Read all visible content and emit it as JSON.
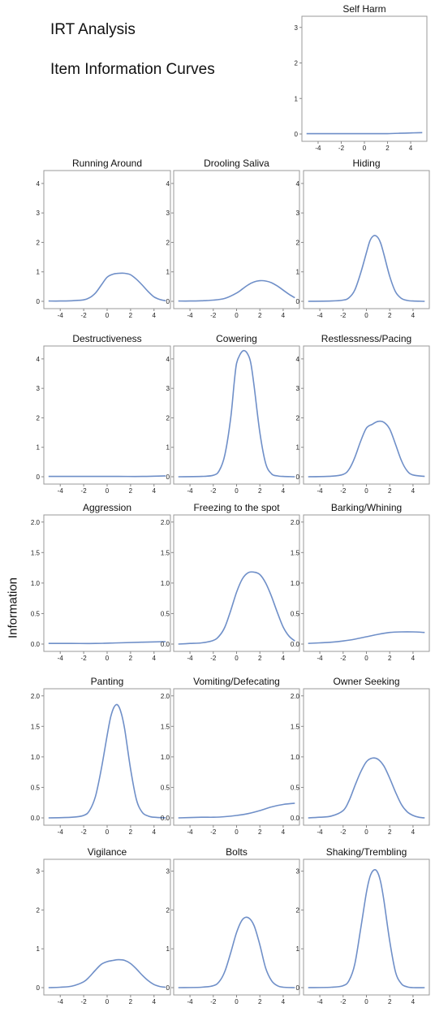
{
  "header": {
    "title": "IRT Analysis",
    "subtitle": "Item Information Curves",
    "y_axis_label": "Information"
  },
  "chart_data": {
    "type": "line",
    "x_ticks": [
      "-4",
      "-2",
      "0",
      "2",
      "4"
    ],
    "panels": [
      {
        "title": "Self Harm",
        "ylim": [
          0,
          3.2
        ],
        "yticks": [
          0,
          1,
          2,
          3
        ],
        "ytick_labels": [
          "0",
          "1",
          "2",
          "3"
        ],
        "x": [
          -5,
          -3,
          -1,
          0,
          1,
          2,
          3,
          4,
          5
        ],
        "values": [
          0.01,
          0.01,
          0.01,
          0.01,
          0.01,
          0.01,
          0.02,
          0.03,
          0.04
        ]
      },
      {
        "title": "Running Around",
        "ylim": [
          0,
          4.3
        ],
        "yticks": [
          0,
          1,
          2,
          3,
          4
        ],
        "ytick_labels": [
          "0",
          "1",
          "2",
          "3",
          "4"
        ],
        "x": [
          -5,
          -4,
          -3,
          -2,
          -1.5,
          -1,
          -0.5,
          0,
          0.5,
          1,
          1.5,
          2,
          2.5,
          3,
          3.5,
          4,
          4.5,
          5
        ],
        "values": [
          0.01,
          0.01,
          0.02,
          0.05,
          0.12,
          0.28,
          0.55,
          0.82,
          0.92,
          0.95,
          0.95,
          0.9,
          0.75,
          0.55,
          0.33,
          0.15,
          0.06,
          0.02
        ]
      },
      {
        "title": "Drooling Saliva",
        "ylim": [
          0,
          4.3
        ],
        "yticks": [
          0,
          1,
          2,
          3,
          4
        ],
        "ytick_labels": [
          "0",
          "1",
          "2",
          "3",
          "4"
        ],
        "x": [
          -5,
          -4,
          -3,
          -2,
          -1,
          0,
          0.5,
          1,
          1.5,
          2,
          2.5,
          3,
          3.5,
          4,
          4.5,
          5
        ],
        "values": [
          0.01,
          0.01,
          0.02,
          0.04,
          0.1,
          0.28,
          0.42,
          0.56,
          0.66,
          0.7,
          0.69,
          0.63,
          0.52,
          0.38,
          0.24,
          0.12
        ]
      },
      {
        "title": "Hiding",
        "ylim": [
          0,
          4.3
        ],
        "yticks": [
          0,
          1,
          2,
          3,
          4
        ],
        "ytick_labels": [
          "0",
          "1",
          "2",
          "3",
          "4"
        ],
        "x": [
          -5,
          -3,
          -2,
          -1.5,
          -1,
          -0.5,
          0,
          0.3,
          0.6,
          0.9,
          1.2,
          1.5,
          2,
          2.5,
          3,
          3.5,
          4,
          5
        ],
        "values": [
          0.0,
          0.01,
          0.04,
          0.12,
          0.38,
          0.95,
          1.65,
          2.05,
          2.22,
          2.2,
          2.0,
          1.6,
          0.85,
          0.32,
          0.1,
          0.03,
          0.01,
          0.0
        ]
      },
      {
        "title": "Destructiveness",
        "ylim": [
          0,
          4.3
        ],
        "yticks": [
          0,
          1,
          2,
          3,
          4
        ],
        "ytick_labels": [
          "0",
          "1",
          "2",
          "3",
          "4"
        ],
        "x": [
          -5,
          -3,
          -1,
          1,
          3,
          4,
          5
        ],
        "values": [
          0.01,
          0.01,
          0.01,
          0.01,
          0.01,
          0.02,
          0.03
        ]
      },
      {
        "title": "Cowering",
        "ylim": [
          0,
          4.3
        ],
        "yticks": [
          0,
          1,
          2,
          3,
          4
        ],
        "ytick_labels": [
          "0",
          "1",
          "2",
          "3",
          "4"
        ],
        "x": [
          -5,
          -3,
          -2,
          -1.5,
          -1,
          -0.5,
          -0.2,
          0,
          0.3,
          0.6,
          0.9,
          1.2,
          1.5,
          2,
          2.5,
          3,
          3.5,
          4,
          5
        ],
        "values": [
          0.0,
          0.01,
          0.05,
          0.2,
          0.75,
          2.0,
          3.2,
          3.85,
          4.15,
          4.28,
          4.2,
          3.9,
          3.1,
          1.5,
          0.45,
          0.1,
          0.03,
          0.01,
          0.0
        ]
      },
      {
        "title": "Restlessness/Pacing",
        "ylim": [
          0,
          4.3
        ],
        "yticks": [
          0,
          1,
          2,
          3,
          4
        ],
        "ytick_labels": [
          "0",
          "1",
          "2",
          "3",
          "4"
        ],
        "x": [
          -5,
          -3,
          -2,
          -1.5,
          -1,
          -0.5,
          0,
          0.5,
          1,
          1.5,
          2,
          2.5,
          3,
          3.5,
          4,
          5
        ],
        "values": [
          0.0,
          0.02,
          0.08,
          0.25,
          0.65,
          1.2,
          1.65,
          1.78,
          1.88,
          1.85,
          1.62,
          1.1,
          0.55,
          0.2,
          0.06,
          0.01
        ]
      },
      {
        "title": "Aggression",
        "ylim": [
          0,
          2.05
        ],
        "yticks": [
          0,
          0.5,
          1,
          1.5,
          2
        ],
        "ytick_labels": [
          "0.0",
          "0.5",
          "1.0",
          "1.5",
          "2.0"
        ],
        "x": [
          -5,
          -3,
          -1,
          1,
          3,
          5
        ],
        "values": [
          0.01,
          0.01,
          0.01,
          0.02,
          0.03,
          0.04
        ]
      },
      {
        "title": "Freezing to the spot",
        "ylim": [
          0,
          2.05
        ],
        "yticks": [
          0,
          0.5,
          1,
          1.5,
          2
        ],
        "ytick_labels": [
          "0.0",
          "0.5",
          "1.0",
          "1.5",
          "2.0"
        ],
        "x": [
          -5,
          -4,
          -3,
          -2,
          -1.5,
          -1,
          -0.5,
          0,
          0.5,
          1,
          1.5,
          2,
          2.5,
          3,
          3.5,
          4,
          4.5,
          5
        ],
        "values": [
          0.0,
          0.01,
          0.02,
          0.06,
          0.13,
          0.28,
          0.55,
          0.85,
          1.07,
          1.17,
          1.18,
          1.14,
          1.0,
          0.78,
          0.52,
          0.28,
          0.13,
          0.05
        ]
      },
      {
        "title": "Barking/Whining",
        "ylim": [
          0,
          2.05
        ],
        "yticks": [
          0,
          0.5,
          1,
          1.5,
          2
        ],
        "ytick_labels": [
          "0.0",
          "0.5",
          "1.0",
          "1.5",
          "2.0"
        ],
        "x": [
          -5,
          -4,
          -3,
          -2,
          -1,
          0,
          1,
          2,
          3,
          4,
          5
        ],
        "values": [
          0.01,
          0.02,
          0.03,
          0.05,
          0.08,
          0.12,
          0.16,
          0.19,
          0.2,
          0.2,
          0.19
        ]
      },
      {
        "title": "Panting",
        "ylim": [
          0,
          2.05
        ],
        "yticks": [
          0,
          0.5,
          1,
          1.5,
          2
        ],
        "ytick_labels": [
          "0.0",
          "0.5",
          "1.0",
          "1.5",
          "2.0"
        ],
        "x": [
          -5,
          -3,
          -2,
          -1.5,
          -1,
          -0.5,
          0,
          0.3,
          0.6,
          0.9,
          1.2,
          1.5,
          2,
          2.5,
          3,
          3.5,
          4,
          5
        ],
        "values": [
          0.0,
          0.01,
          0.04,
          0.12,
          0.35,
          0.8,
          1.35,
          1.65,
          1.82,
          1.85,
          1.72,
          1.45,
          0.8,
          0.3,
          0.09,
          0.03,
          0.01,
          0.0
        ]
      },
      {
        "title": "Vomiting/Defecating",
        "ylim": [
          0,
          2.05
        ],
        "yticks": [
          0,
          0.5,
          1,
          1.5,
          2
        ],
        "ytick_labels": [
          "0.0",
          "0.5",
          "1.0",
          "1.5",
          "2.0"
        ],
        "x": [
          -5,
          -3,
          -2,
          -1,
          0,
          1,
          2,
          3,
          4,
          5
        ],
        "values": [
          0.0,
          0.01,
          0.01,
          0.02,
          0.04,
          0.07,
          0.12,
          0.18,
          0.22,
          0.24
        ]
      },
      {
        "title": "Owner Seeking",
        "ylim": [
          0,
          2.05
        ],
        "yticks": [
          0,
          0.5,
          1,
          1.5,
          2
        ],
        "ytick_labels": [
          "0.0",
          "0.5",
          "1.0",
          "1.5",
          "2.0"
        ],
        "x": [
          -5,
          -4,
          -3,
          -2,
          -1.5,
          -1,
          -0.5,
          0,
          0.5,
          1,
          1.5,
          2,
          2.5,
          3,
          3.5,
          4,
          4.5,
          5
        ],
        "values": [
          0.0,
          0.01,
          0.03,
          0.12,
          0.28,
          0.52,
          0.75,
          0.92,
          0.98,
          0.96,
          0.85,
          0.65,
          0.42,
          0.22,
          0.1,
          0.04,
          0.01,
          0.0
        ]
      },
      {
        "title": "Vigilance",
        "ylim": [
          0,
          3.2
        ],
        "yticks": [
          0,
          1,
          2,
          3
        ],
        "ytick_labels": [
          "0",
          "1",
          "2",
          "3"
        ],
        "x": [
          -5,
          -4,
          -3,
          -2,
          -1.5,
          -1,
          -0.5,
          0,
          0.5,
          1,
          1.5,
          2,
          2.5,
          3,
          3.5,
          4,
          4.5,
          5
        ],
        "values": [
          0.0,
          0.01,
          0.04,
          0.15,
          0.28,
          0.45,
          0.6,
          0.67,
          0.7,
          0.72,
          0.7,
          0.62,
          0.48,
          0.32,
          0.18,
          0.08,
          0.03,
          0.01
        ]
      },
      {
        "title": "Bolts",
        "ylim": [
          0,
          3.2
        ],
        "yticks": [
          0,
          1,
          2,
          3
        ],
        "ytick_labels": [
          "0",
          "1",
          "2",
          "3"
        ],
        "x": [
          -5,
          -3,
          -2,
          -1.5,
          -1,
          -0.5,
          0,
          0.5,
          1,
          1.5,
          2,
          2.5,
          3,
          3.5,
          4,
          5
        ],
        "values": [
          0.0,
          0.01,
          0.05,
          0.15,
          0.42,
          0.9,
          1.42,
          1.75,
          1.8,
          1.6,
          1.1,
          0.5,
          0.18,
          0.05,
          0.01,
          0.0
        ]
      },
      {
        "title": "Shaking/Trembling",
        "ylim": [
          0,
          3.2
        ],
        "yticks": [
          0,
          1,
          2,
          3
        ],
        "ytick_labels": [
          "0",
          "1",
          "2",
          "3"
        ],
        "x": [
          -5,
          -3,
          -2,
          -1.5,
          -1,
          -0.5,
          0,
          0.3,
          0.6,
          0.9,
          1.2,
          1.5,
          2,
          2.5,
          3,
          3.5,
          4,
          5
        ],
        "values": [
          0.0,
          0.01,
          0.05,
          0.18,
          0.6,
          1.5,
          2.45,
          2.85,
          3.02,
          3.0,
          2.75,
          2.25,
          1.2,
          0.4,
          0.1,
          0.02,
          0.0,
          0.0
        ]
      }
    ]
  }
}
